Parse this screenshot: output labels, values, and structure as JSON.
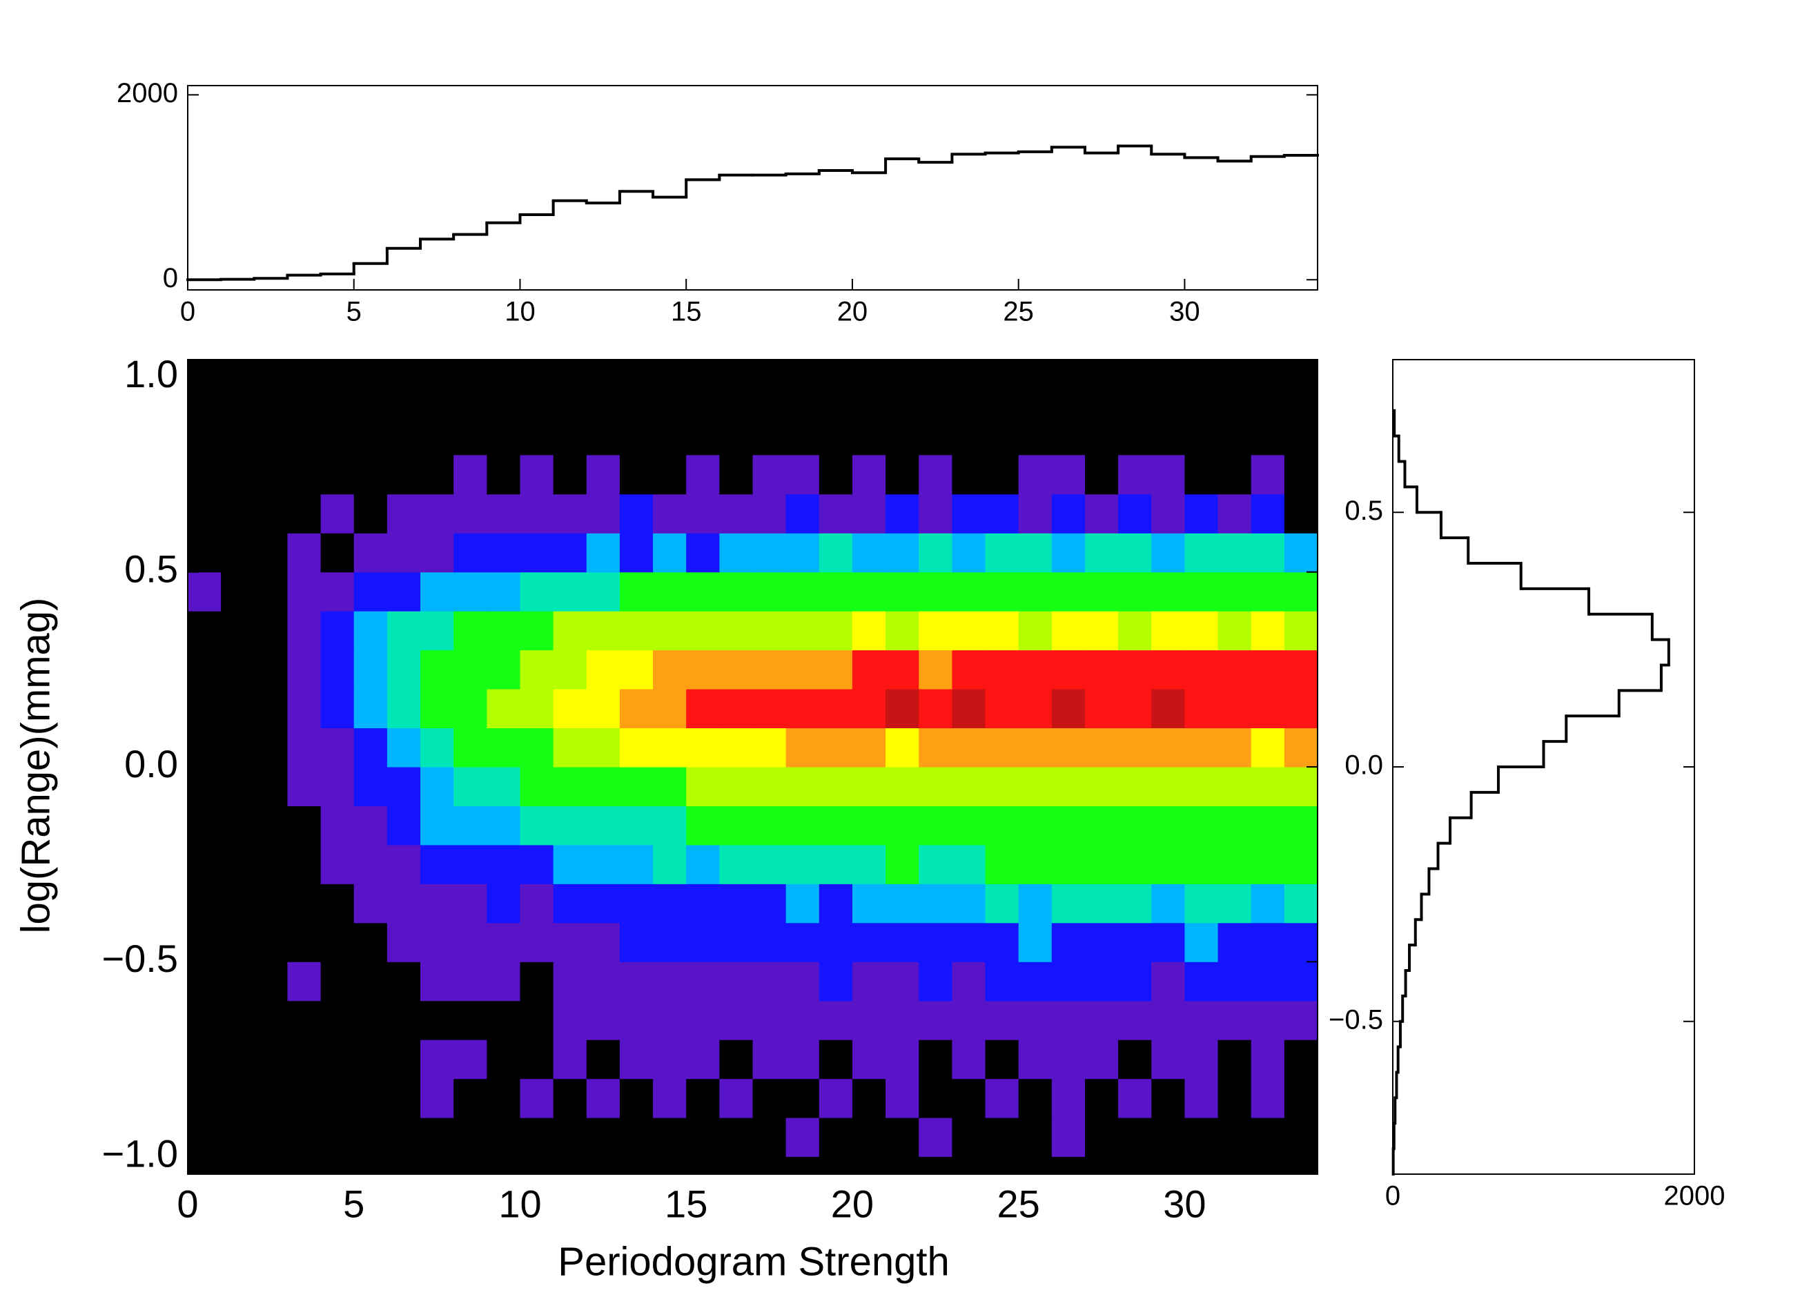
{
  "chart_data": [
    {
      "type": "heatmap",
      "x_label": "Periodogram Strength",
      "y_label": "log(Range)(mmag)",
      "xlim": [
        0,
        34
      ],
      "ylim": [
        -1.045,
        1.045
      ],
      "xticks": [
        0,
        5,
        10,
        15,
        20,
        25,
        30
      ],
      "yticks": [
        {
          "value": -1.0,
          "label": "−1.0"
        },
        {
          "value": -0.5,
          "label": "−0.5"
        },
        {
          "value": 0.0,
          "label": "0.0"
        },
        {
          "value": 0.5,
          "label": "0.5"
        },
        {
          "value": 1.0,
          "label": "1.0"
        }
      ],
      "x_bins": [
        0,
        1,
        2,
        3,
        4,
        5,
        6,
        7,
        8,
        9,
        10,
        11,
        12,
        13,
        14,
        15,
        16,
        17,
        18,
        19,
        20,
        21,
        22,
        23,
        24,
        25,
        26,
        27,
        28,
        29,
        30,
        31,
        32,
        33,
        34
      ],
      "y_bins": [
        -1.0,
        -0.9,
        -0.8,
        -0.7,
        -0.6,
        -0.5,
        -0.4,
        -0.3,
        -0.2,
        -0.1,
        0.0,
        0.1,
        0.2,
        0.3,
        0.4,
        0.5,
        0.6,
        0.7,
        0.8
      ],
      "colors": [
        "#000000",
        "#5a14c8",
        "#1414ff",
        "#00b4ff",
        "#00e6b4",
        "#14ff14",
        "#b4ff00",
        "#ffff00",
        "#ffa014",
        "#ff1414",
        "#c81414"
      ],
      "z": [
        [
          0,
          0,
          0,
          0,
          0,
          0,
          0,
          0,
          0,
          0,
          0,
          0,
          0,
          0,
          0,
          0,
          0,
          0,
          1,
          0,
          0,
          0,
          1,
          0,
          0,
          0,
          1,
          0,
          0,
          0,
          0,
          0,
          0,
          0
        ],
        [
          0,
          0,
          0,
          0,
          0,
          0,
          0,
          1,
          0,
          0,
          1,
          0,
          1,
          0,
          1,
          0,
          1,
          0,
          0,
          1,
          0,
          1,
          0,
          0,
          1,
          0,
          1,
          0,
          1,
          0,
          1,
          0,
          1,
          0
        ],
        [
          0,
          0,
          0,
          0,
          0,
          0,
          0,
          1,
          1,
          0,
          0,
          1,
          0,
          1,
          1,
          1,
          0,
          1,
          1,
          0,
          1,
          1,
          0,
          1,
          0,
          1,
          1,
          1,
          0,
          1,
          1,
          0,
          1,
          0
        ],
        [
          0,
          0,
          0,
          0,
          0,
          0,
          0,
          0,
          0,
          0,
          0,
          1,
          1,
          1,
          1,
          1,
          1,
          1,
          1,
          1,
          1,
          1,
          1,
          1,
          1,
          1,
          1,
          1,
          1,
          1,
          1,
          1,
          1,
          1
        ],
        [
          0,
          0,
          0,
          1,
          0,
          0,
          0,
          1,
          1,
          1,
          0,
          1,
          1,
          1,
          1,
          1,
          1,
          1,
          1,
          2,
          1,
          1,
          2,
          1,
          2,
          2,
          2,
          2,
          2,
          1,
          2,
          2,
          2,
          2
        ],
        [
          0,
          0,
          0,
          0,
          0,
          0,
          1,
          1,
          1,
          1,
          1,
          1,
          1,
          2,
          2,
          2,
          2,
          2,
          2,
          2,
          2,
          2,
          2,
          2,
          2,
          3,
          2,
          2,
          2,
          2,
          3,
          2,
          2,
          2
        ],
        [
          0,
          0,
          0,
          0,
          0,
          1,
          1,
          1,
          1,
          2,
          1,
          2,
          2,
          2,
          2,
          2,
          2,
          2,
          3,
          2,
          3,
          3,
          3,
          3,
          4,
          3,
          4,
          4,
          4,
          3,
          4,
          4,
          3,
          4
        ],
        [
          0,
          0,
          0,
          0,
          1,
          1,
          1,
          2,
          2,
          2,
          2,
          3,
          3,
          3,
          4,
          3,
          4,
          4,
          4,
          4,
          4,
          5,
          4,
          4,
          5,
          5,
          5,
          5,
          5,
          5,
          5,
          5,
          5,
          5
        ],
        [
          0,
          0,
          0,
          0,
          1,
          1,
          2,
          3,
          3,
          3,
          4,
          4,
          4,
          4,
          4,
          5,
          5,
          5,
          5,
          5,
          5,
          5,
          5,
          5,
          5,
          5,
          5,
          5,
          5,
          5,
          5,
          5,
          5,
          5
        ],
        [
          0,
          0,
          0,
          1,
          1,
          2,
          2,
          3,
          4,
          4,
          5,
          5,
          5,
          5,
          5,
          6,
          6,
          6,
          6,
          6,
          6,
          6,
          6,
          6,
          6,
          6,
          6,
          6,
          6,
          6,
          6,
          6,
          6,
          6
        ],
        [
          0,
          0,
          0,
          1,
          1,
          2,
          3,
          4,
          5,
          5,
          5,
          6,
          6,
          7,
          7,
          7,
          7,
          7,
          8,
          8,
          8,
          7,
          8,
          8,
          8,
          8,
          8,
          8,
          8,
          8,
          8,
          8,
          7,
          8
        ],
        [
          0,
          0,
          0,
          1,
          2,
          3,
          4,
          5,
          5,
          6,
          6,
          7,
          7,
          8,
          8,
          9,
          9,
          9,
          9,
          9,
          9,
          10,
          9,
          10,
          9,
          9,
          10,
          9,
          9,
          10,
          9,
          9,
          9,
          9
        ],
        [
          0,
          0,
          0,
          1,
          2,
          3,
          4,
          5,
          5,
          5,
          6,
          6,
          7,
          7,
          8,
          8,
          8,
          8,
          8,
          8,
          9,
          9,
          8,
          9,
          9,
          9,
          9,
          9,
          9,
          9,
          9,
          9,
          9,
          9
        ],
        [
          0,
          0,
          0,
          1,
          2,
          3,
          4,
          4,
          5,
          5,
          5,
          6,
          6,
          6,
          6,
          6,
          6,
          6,
          6,
          6,
          7,
          6,
          7,
          7,
          7,
          6,
          7,
          7,
          6,
          7,
          7,
          6,
          7,
          6
        ],
        [
          1,
          0,
          0,
          1,
          1,
          2,
          2,
          3,
          3,
          3,
          4,
          4,
          4,
          5,
          5,
          5,
          5,
          5,
          5,
          5,
          5,
          5,
          5,
          5,
          5,
          5,
          5,
          5,
          5,
          5,
          5,
          5,
          5,
          5
        ],
        [
          0,
          0,
          0,
          1,
          0,
          1,
          1,
          1,
          2,
          2,
          2,
          2,
          3,
          2,
          3,
          2,
          3,
          3,
          3,
          4,
          3,
          3,
          4,
          3,
          4,
          4,
          3,
          4,
          4,
          3,
          4,
          4,
          4,
          3
        ],
        [
          0,
          0,
          0,
          0,
          1,
          0,
          1,
          1,
          1,
          1,
          1,
          1,
          1,
          2,
          1,
          1,
          1,
          1,
          2,
          1,
          1,
          2,
          1,
          2,
          2,
          1,
          2,
          1,
          2,
          1,
          2,
          1,
          2,
          0
        ],
        [
          0,
          0,
          0,
          0,
          0,
          0,
          0,
          0,
          1,
          0,
          1,
          0,
          1,
          0,
          0,
          1,
          0,
          1,
          1,
          0,
          1,
          0,
          1,
          0,
          0,
          1,
          1,
          0,
          1,
          1,
          0,
          0,
          1,
          0
        ]
      ]
    },
    {
      "type": "histogram",
      "orientation": "vertical",
      "xlim": [
        0,
        34
      ],
      "ylim": [
        -110,
        2100
      ],
      "xticks": [
        0,
        5,
        10,
        15,
        20,
        25,
        30
      ],
      "yticks": [
        0,
        2000
      ],
      "bins": [
        0,
        1,
        2,
        3,
        4,
        5,
        6,
        7,
        8,
        9,
        10,
        11,
        12,
        13,
        14,
        15,
        16,
        17,
        18,
        19,
        20,
        21,
        22,
        23,
        24,
        25,
        26,
        27,
        28,
        29,
        30,
        31,
        32,
        33,
        34
      ],
      "values": [
        0,
        5,
        15,
        50,
        63,
        176,
        340,
        440,
        490,
        616,
        704,
        855,
        830,
        956,
        893,
        1082,
        1132,
        1132,
        1145,
        1182,
        1157,
        1308,
        1270,
        1358,
        1371,
        1384,
        1434,
        1371,
        1447,
        1358,
        1321,
        1283,
        1333,
        1346
      ],
      "color": "#000000"
    },
    {
      "type": "histogram",
      "orientation": "horizontal",
      "xlim": [
        0,
        2000
      ],
      "ylim": [
        -0.8,
        0.8
      ],
      "xticks": [
        0,
        2000
      ],
      "yticks": [
        {
          "value": -0.5,
          "label": "−0.5"
        },
        {
          "value": 0.0,
          "label": "0.0"
        },
        {
          "value": 0.5,
          "label": "0.5"
        }
      ],
      "bins": [
        -0.8,
        -0.75,
        -0.7,
        -0.65,
        -0.6,
        -0.55,
        -0.5,
        -0.45,
        -0.4,
        -0.35,
        -0.3,
        -0.25,
        -0.2,
        -0.15,
        -0.1,
        -0.05,
        0.0,
        0.05,
        0.1,
        0.15,
        0.2,
        0.25,
        0.3,
        0.35,
        0.4,
        0.45,
        0.5,
        0.55,
        0.6,
        0.65,
        0.7
      ],
      "values": [
        3,
        8,
        15,
        25,
        35,
        50,
        65,
        85,
        110,
        150,
        190,
        240,
        300,
        380,
        520,
        700,
        1000,
        1150,
        1500,
        1780,
        1830,
        1720,
        1300,
        850,
        500,
        320,
        160,
        80,
        40,
        10
      ],
      "color": "#000000"
    }
  ]
}
